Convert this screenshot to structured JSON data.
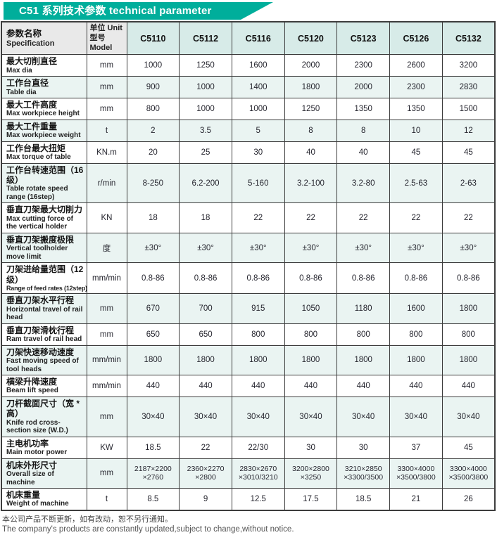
{
  "banner": {
    "title": "C51 系列技术参数 technical parameter"
  },
  "colors": {
    "accent": "#00ae9b",
    "model_header_bg": "#d7ebe8",
    "stripe_bg": "#eaf4f2",
    "header_bg": "#e9e9e9",
    "border": "#3d3d3d"
  },
  "table": {
    "header": {
      "spec_zh": "参数名称",
      "spec_en": "Specification",
      "unit_zh": "单位 Unit",
      "unit_en": "型号 Model"
    },
    "models": [
      "C5110",
      "C5112",
      "C5116",
      "C5120",
      "C5123",
      "C5126",
      "C5132"
    ],
    "rows": [
      {
        "zh": "最大切削直径",
        "en": "Max dia",
        "unit": "mm",
        "values": [
          "1000",
          "1250",
          "1600",
          "2000",
          "2300",
          "2600",
          "3200"
        ]
      },
      {
        "zh": "工作台直径",
        "en": "Table dia",
        "unit": "mm",
        "values": [
          "900",
          "1000",
          "1400",
          "1800",
          "2000",
          "2300",
          "2830"
        ]
      },
      {
        "zh": "最大工件高度",
        "en": "Max workpiece height",
        "unit": "mm",
        "values": [
          "800",
          "1000",
          "1000",
          "1250",
          "1350",
          "1350",
          "1500"
        ]
      },
      {
        "zh": "最大工件重量",
        "en": "Max workpiece weight",
        "unit": "t",
        "values": [
          "2",
          "3.5",
          "5",
          "8",
          "8",
          "10",
          "12"
        ]
      },
      {
        "zh": "工作台最大扭矩",
        "en": "Max torque of table",
        "unit": "KN.m",
        "values": [
          "20",
          "25",
          "30",
          "40",
          "40",
          "45",
          "45"
        ]
      },
      {
        "zh": "工作台转速范围（16 级）",
        "en": "Table rotate speed range (16step)",
        "unit": "r/min",
        "values": [
          "8-250",
          "6.2-200",
          "5-160",
          "3.2-100",
          "3.2-80",
          "2.5-63",
          "2-63"
        ]
      },
      {
        "zh": "垂直刀架最大切削力",
        "en": "Max cutting force of the vertical holder",
        "unit": "KN",
        "values": [
          "18",
          "18",
          "22",
          "22",
          "22",
          "22",
          "22"
        ]
      },
      {
        "zh": "垂直刀架搬度极限",
        "en": "Vertical toolholder move limit",
        "unit": "度",
        "values": [
          "±30°",
          "±30°",
          "±30°",
          "±30°",
          "±30°",
          "±30°",
          "±30°"
        ]
      },
      {
        "zh": "刀架进给量范围（12级）",
        "en": "Range of feed rates (12step)",
        "unit": "mm/min",
        "values": [
          "0.8-86",
          "0.8-86",
          "0.8-86",
          "0.8-86",
          "0.8-86",
          "0.8-86",
          "0.8-86"
        ]
      },
      {
        "zh": "垂直刀架水平行程",
        "en": "Horizontal travel of rail head",
        "unit": "mm",
        "values": [
          "670",
          "700",
          "915",
          "1050",
          "1180",
          "1600",
          "1800"
        ]
      },
      {
        "zh": "垂直刀架滑枕行程",
        "en": "Ram travel of rail head",
        "unit": "mm",
        "values": [
          "650",
          "650",
          "800",
          "800",
          "800",
          "800",
          "800"
        ]
      },
      {
        "zh": "刀架快速移动速度",
        "en": "Fast moving speed of tool heads",
        "unit": "mm/min",
        "values": [
          "1800",
          "1800",
          "1800",
          "1800",
          "1800",
          "1800",
          "1800"
        ]
      },
      {
        "zh": "横梁升降速度",
        "en": "Beam lift speed",
        "unit": "mm/min",
        "values": [
          "440",
          "440",
          "440",
          "440",
          "440",
          "440",
          "440"
        ]
      },
      {
        "zh": "刀杆截面尺寸（宽 * 高）",
        "en": "Knife rod cross-section size (W.D.)",
        "unit": "mm",
        "values": [
          "30×40",
          "30×40",
          "30×40",
          "30×40",
          "30×40",
          "30×40",
          "30×40"
        ]
      },
      {
        "zh": "主电机功率",
        "en": "Main motor power",
        "unit": "KW",
        "values": [
          "18.5",
          "22",
          "22/30",
          "30",
          "30",
          "37",
          "45"
        ]
      },
      {
        "zh": "机床外形尺寸",
        "en": "Overall size of machine",
        "unit": "mm",
        "values": [
          "2187×2200\n×2760",
          "2360×2270\n×2800",
          "2830×2670\n×3010/3210",
          "3200×2800\n×3250",
          "3210×2850\n×3300/3500",
          "3300×4000\n×3500/3800",
          "3300×4000\n×3500/3800"
        ]
      },
      {
        "zh": "机床重量",
        "en": "Weight of machine",
        "unit": "t",
        "values": [
          "8.5",
          "9",
          "12.5",
          "17.5",
          "18.5",
          "21",
          "26"
        ]
      }
    ]
  },
  "footer": {
    "zh": "本公司产品不断更新，如有改动，恕不另行通知。",
    "en": "The company's products are constantly updated,subject to change,without notice."
  }
}
